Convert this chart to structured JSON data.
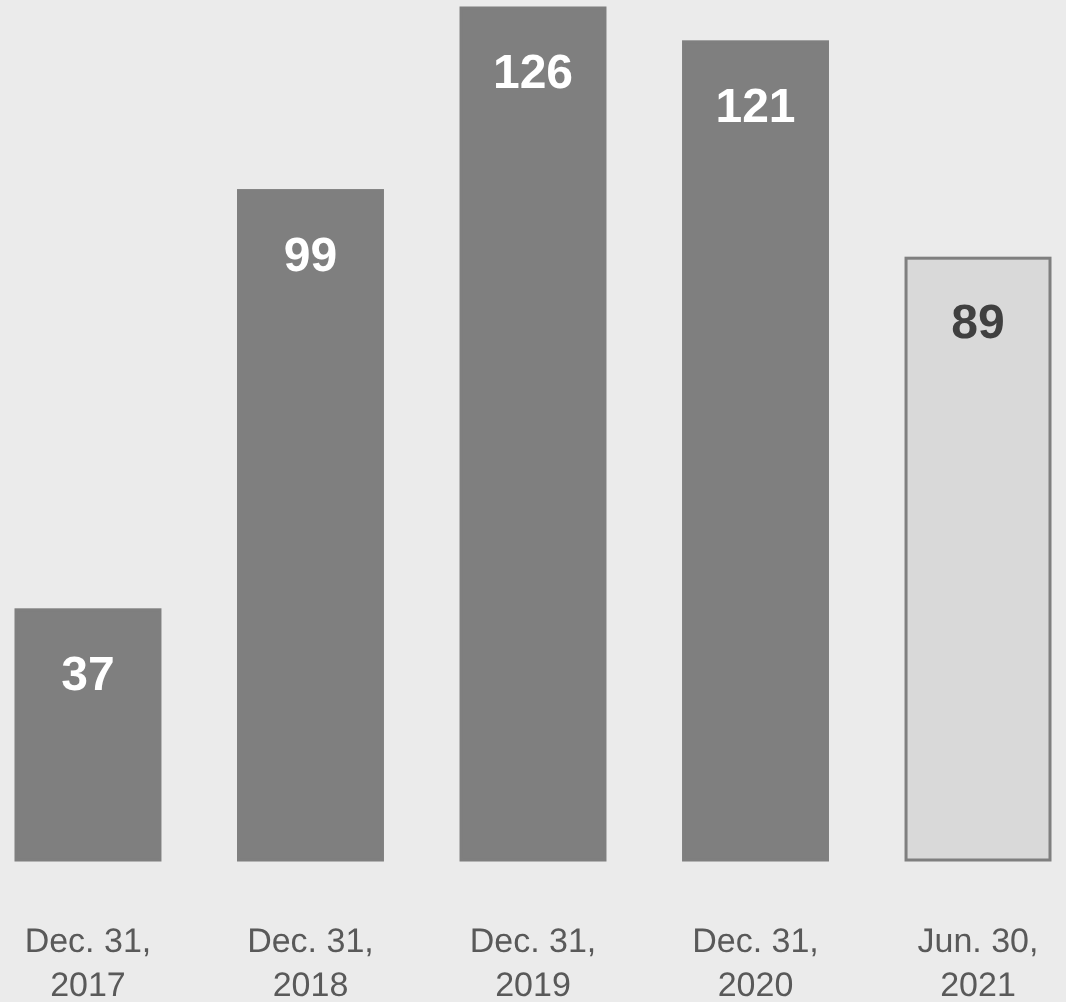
{
  "chart_data": {
    "type": "bar",
    "categories": [
      "Dec. 31, 2017",
      "Dec. 31, 2018",
      "Dec. 31, 2019",
      "Dec. 31, 2020",
      "Jun. 30, 2021"
    ],
    "values": [
      37,
      99,
      126,
      121,
      89
    ],
    "colors": [
      "#7f7f7f",
      "#7f7f7f",
      "#7f7f7f",
      "#7f7f7f",
      "#d9d9d9"
    ],
    "data_labels": true
  }
}
